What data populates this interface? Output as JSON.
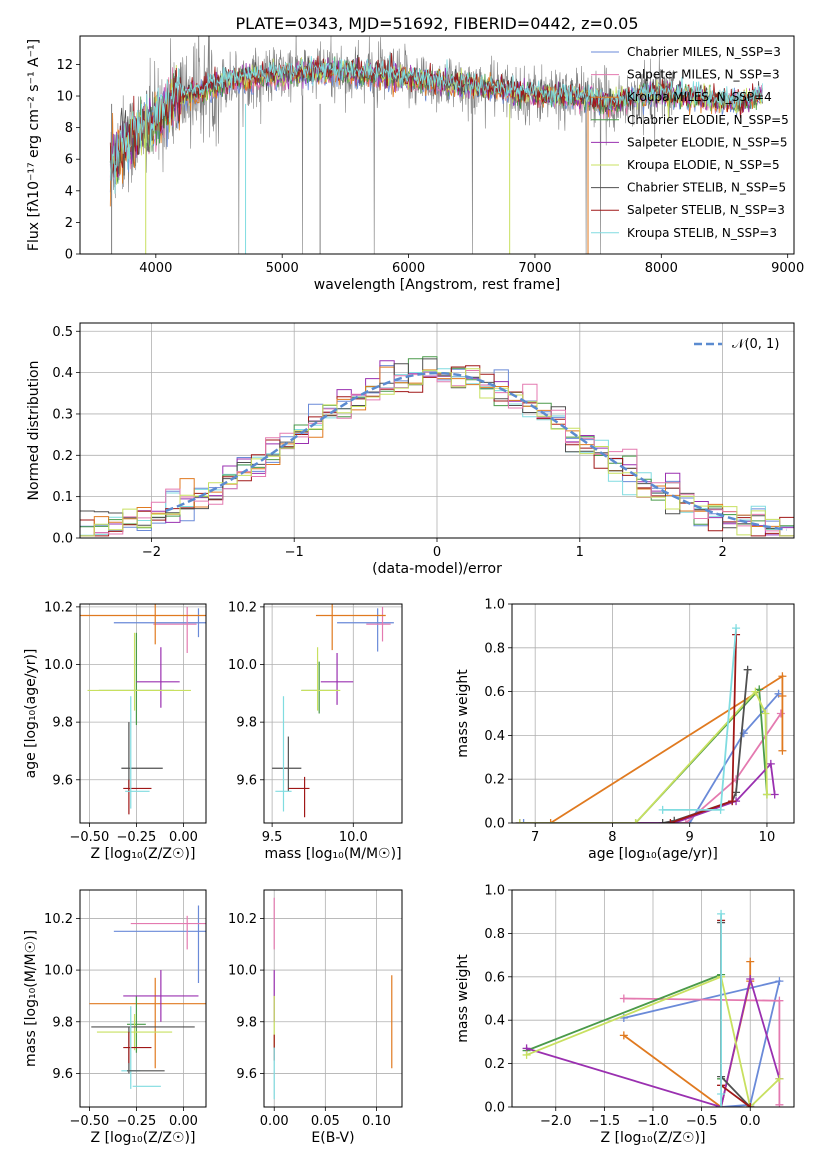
{
  "colors": {
    "chabrier_miles": "#6a8ad8",
    "salpeter_miles": "#e47ab0",
    "kroupa_miles": "#e07a20",
    "chabrier_elodie": "#4a9a4a",
    "salpeter_elodie": "#9a30b0",
    "kroupa_elodie": "#c8e060",
    "chabrier_stelib": "#505050",
    "salpeter_stelib": "#a01818",
    "kroupa_stelib": "#80dce0",
    "data_gray": "#7f7f7f",
    "gauss": "#5b8bd0"
  },
  "chart_data": [
    {
      "type": "line",
      "title": "PLATE=0343, MJD=51692, FIBERID=0442, z=0.05",
      "xlabel": "wavelength [Angstrom, rest frame]",
      "ylabel": "Flux [fλ10⁻¹⁷ erg cm⁻² s⁻¹ A⁻¹]",
      "xlim": [
        3400,
        9050
      ],
      "ylim": [
        0,
        13.8
      ],
      "xticks": [
        "4000",
        "5000",
        "6000",
        "7000",
        "8000",
        "9000"
      ],
      "yticks": [
        "0",
        "2",
        "4",
        "6",
        "8",
        "10",
        "12"
      ],
      "legend_position": "top-right",
      "legend": [
        "Chabrier MILES, N_SSP=3",
        "Salpeter MILES, N_SSP=3",
        "Kroupa MILES, N_SSP=4",
        "Chabrier ELODIE, N_SSP=5",
        "Salpeter ELODIE, N_SSP=5",
        "Kroupa ELODIE, N_SSP=5",
        "Chabrier STELIB, N_SSP=5",
        "Salpeter STELIB, N_SSP=3",
        "Kroupa STELIB, N_SSP=3"
      ],
      "continuum": {
        "x": [
          3650,
          3700,
          3800,
          3900,
          4000,
          4100,
          4200,
          4300,
          4400,
          4600,
          4800,
          5000,
          5200,
          5400,
          5600,
          5800,
          6000,
          6200,
          6400,
          6600,
          6800,
          7000,
          7200,
          7400,
          7600,
          7800,
          8000,
          8200,
          8400,
          8600,
          8800
        ],
        "y": [
          5.5,
          6.5,
          7.2,
          7.8,
          8.5,
          9.5,
          10.0,
          10.2,
          10.5,
          11.0,
          11.2,
          11.4,
          11.5,
          11.6,
          11.4,
          11.3,
          11.1,
          10.9,
          10.7,
          10.5,
          10.3,
          10.1,
          10.0,
          9.9,
          9.5,
          10.0,
          10.2,
          10.0,
          9.8,
          9.6,
          10.0
        ]
      },
      "data_range": [
        3640,
        8100
      ],
      "model_range": [
        3640,
        8800
      ],
      "dropouts": [
        3650,
        3920,
        4710,
        5300,
        6800,
        7420
      ]
    },
    {
      "type": "bar",
      "xlabel": "(data-model)/error",
      "ylabel": "Normed distribution",
      "xlim": [
        -2.5,
        2.5
      ],
      "ylim": [
        0,
        0.52
      ],
      "xticks": [
        "−2",
        "−1",
        "0",
        "1",
        "2"
      ],
      "yticks": [
        "0.0",
        "0.1",
        "0.2",
        "0.3",
        "0.4",
        "0.5"
      ],
      "grid": true,
      "legend_position": "top-right",
      "legend": [
        "𝒩(0, 1)"
      ],
      "bin_width": 0.1,
      "bin_range": [
        -2.5,
        2.5
      ],
      "note": "nine step histograms, one per model, approximately following the normal curve"
    },
    {
      "type": "scatter",
      "xlabel": "Z [log₁₀(Z/Z☉)]",
      "ylabel": "age  [log₁₀(age/yr)]",
      "xlim": [
        -0.55,
        0.12
      ],
      "ylim": [
        9.45,
        10.21
      ],
      "xticks": [
        "−0.50",
        "−0.25",
        "0.00"
      ],
      "yticks": [
        "9.6",
        "9.8",
        "10.0",
        "10.2"
      ],
      "grid": true,
      "points": [
        {
          "model": "chabrier_miles",
          "x": 0.08,
          "y": 10.145,
          "xerr": [
            0.45,
            0.05
          ],
          "yerr": [
            0.05,
            0.05
          ]
        },
        {
          "model": "salpeter_miles",
          "x": 0.02,
          "y": 10.14,
          "xerr": [
            0.18,
            0.05
          ],
          "yerr": [
            0.1,
            0.06
          ]
        },
        {
          "model": "kroupa_miles",
          "x": -0.15,
          "y": 10.17,
          "xerr": [
            0.4,
            0.3
          ],
          "yerr": [
            0.1,
            0.05
          ]
        },
        {
          "model": "chabrier_elodie",
          "x": -0.25,
          "y": 9.91,
          "xerr": [
            0.2,
            0.2
          ],
          "yerr": [
            0.12,
            0.2
          ]
        },
        {
          "model": "salpeter_elodie",
          "x": -0.12,
          "y": 9.94,
          "xerr": [
            0.13,
            0.1
          ],
          "yerr": [
            0.09,
            0.12
          ]
        },
        {
          "model": "kroupa_elodie",
          "x": -0.26,
          "y": 9.91,
          "xerr": [
            0.25,
            0.3
          ],
          "yerr": [
            0.07,
            0.2
          ]
        },
        {
          "model": "chabrier_stelib",
          "x": -0.29,
          "y": 9.64,
          "xerr": [
            0.04,
            0.18
          ],
          "yerr": [
            0.08,
            0.16
          ]
        },
        {
          "model": "salpeter_stelib",
          "x": -0.29,
          "y": 9.57,
          "xerr": [
            0.03,
            0.12
          ],
          "yerr": [
            0.09,
            0.03
          ]
        },
        {
          "model": "kroupa_stelib",
          "x": -0.28,
          "y": 9.56,
          "xerr": [
            0.03,
            0.1
          ],
          "yerr": [
            0.06,
            0.33
          ]
        }
      ]
    },
    {
      "type": "scatter",
      "xlabel": "mass [log₁₀(M/M☉)]",
      "ylabel": "",
      "xlim": [
        9.45,
        10.3
      ],
      "ylim": [
        9.45,
        10.21
      ],
      "xticks": [
        "9.5",
        "10.0"
      ],
      "yticks": [
        "9.6",
        "9.8",
        "10.0",
        "10.2"
      ],
      "grid": true,
      "points": [
        {
          "model": "chabrier_miles",
          "x": 10.15,
          "y": 10.145,
          "xerr": [
            0.25,
            0.1
          ],
          "yerr": [
            0.1,
            0.05
          ]
        },
        {
          "model": "salpeter_miles",
          "x": 10.18,
          "y": 10.14,
          "xerr": [
            0.1,
            0.05
          ],
          "yerr": [
            0.06,
            0.06
          ]
        },
        {
          "model": "kroupa_miles",
          "x": 9.87,
          "y": 10.17,
          "xerr": [
            0.1,
            0.33
          ],
          "yerr": [
            0.12,
            0.05
          ]
        },
        {
          "model": "chabrier_elodie",
          "x": 9.79,
          "y": 9.91,
          "xerr": [
            0.11,
            0.11
          ],
          "yerr": [
            0.08,
            0.1
          ]
        },
        {
          "model": "salpeter_elodie",
          "x": 9.9,
          "y": 9.94,
          "xerr": [
            0.1,
            0.1
          ],
          "yerr": [
            0.08,
            0.1
          ]
        },
        {
          "model": "kroupa_elodie",
          "x": 9.78,
          "y": 9.91,
          "xerr": [
            0.1,
            0.14
          ],
          "yerr": [
            0.07,
            0.15
          ]
        },
        {
          "model": "chabrier_stelib",
          "x": 9.6,
          "y": 9.64,
          "xerr": [
            0.1,
            0.08
          ],
          "yerr": [
            0.08,
            0.11
          ]
        },
        {
          "model": "salpeter_stelib",
          "x": 9.7,
          "y": 9.57,
          "xerr": [
            0.1,
            0.03
          ],
          "yerr": [
            0.1,
            0.04
          ]
        },
        {
          "model": "kroupa_stelib",
          "x": 9.57,
          "y": 9.56,
          "xerr": [
            0.05,
            0.05
          ],
          "yerr": [
            0.07,
            0.33
          ]
        }
      ]
    },
    {
      "type": "line",
      "xlabel": "age  [log₁₀(age/yr)]",
      "ylabel": "mass weight",
      "xlim": [
        6.7,
        10.35
      ],
      "ylim": [
        0,
        1
      ],
      "xticks": [
        "7",
        "8",
        "9",
        "10"
      ],
      "yticks": [
        "0.0",
        "0.2",
        "0.4",
        "0.6",
        "0.8",
        "1.0"
      ],
      "grid": true,
      "series": [
        {
          "model": "chabrier_miles",
          "x": [
            6.85,
            9.0,
            9.7,
            10.15
          ],
          "y": [
            0.0,
            0.0,
            0.41,
            0.59
          ]
        },
        {
          "model": "salpeter_miles",
          "x": [
            6.8,
            8.95,
            9.6,
            10.18
          ],
          "y": [
            0.0,
            0.0,
            0.2,
            0.5
          ]
        },
        {
          "model": "kroupa_miles",
          "x": [
            7.2,
            10.2,
            10.2,
            10.2
          ],
          "y": [
            0.0,
            0.67,
            0.58,
            0.33
          ]
        },
        {
          "model": "chabrier_elodie",
          "x": [
            6.8,
            8.3,
            9.9,
            10.0
          ],
          "y": [
            0.0,
            0.0,
            0.61,
            0.13
          ]
        },
        {
          "model": "salpeter_elodie",
          "x": [
            6.8,
            8.8,
            9.6,
            10.05,
            10.1
          ],
          "y": [
            0.0,
            0.0,
            0.1,
            0.27,
            0.13
          ]
        },
        {
          "model": "kroupa_elodie",
          "x": [
            6.8,
            8.3,
            9.85,
            9.98,
            10.0
          ],
          "y": [
            0.0,
            0.0,
            0.6,
            0.5,
            0.13
          ]
        },
        {
          "model": "chabrier_stelib",
          "x": [
            8.65,
            8.8,
            9.55,
            9.6,
            9.75
          ],
          "y": [
            0.0,
            0.01,
            0.1,
            0.14,
            0.7
          ]
        },
        {
          "model": "salpeter_stelib",
          "x": [
            8.75,
            9.55,
            9.6
          ],
          "y": [
            0.0,
            0.1,
            0.86
          ]
        },
        {
          "model": "kroupa_stelib",
          "x": [
            8.65,
            9.4,
            9.6
          ],
          "y": [
            0.06,
            0.06,
            0.89
          ]
        }
      ]
    },
    {
      "type": "scatter",
      "xlabel": "Z [log₁₀(Z/Z☉)]",
      "ylabel": "mass [log₁₀(M/M☉)]",
      "xlim": [
        -0.55,
        0.12
      ],
      "ylim": [
        9.47,
        10.31
      ],
      "xticks": [
        "−0.50",
        "−0.25",
        "0.00"
      ],
      "yticks": [
        "9.6",
        "9.8",
        "10.0",
        "10.2"
      ],
      "grid": true,
      "points": [
        {
          "model": "chabrier_miles",
          "x": 0.08,
          "y": 10.15,
          "xerr": [
            0.45,
            0.05
          ],
          "yerr": [
            0.2,
            0.1
          ]
        },
        {
          "model": "salpeter_miles",
          "x": 0.02,
          "y": 10.18,
          "xerr": [
            0.3,
            0.1
          ],
          "yerr": [
            0.1,
            0.03
          ]
        },
        {
          "model": "kroupa_miles",
          "x": -0.15,
          "y": 9.87,
          "xerr": [
            0.35,
            0.3
          ],
          "yerr": [
            0.25,
            0.1
          ]
        },
        {
          "model": "chabrier_elodie",
          "x": -0.25,
          "y": 9.79,
          "xerr": [
            0.05,
            0.05
          ],
          "yerr": [
            0.11,
            0.11
          ]
        },
        {
          "model": "salpeter_elodie",
          "x": -0.12,
          "y": 9.9,
          "xerr": [
            0.2,
            0.2
          ],
          "yerr": [
            0.1,
            0.1
          ]
        },
        {
          "model": "kroupa_elodie",
          "x": -0.26,
          "y": 9.76,
          "xerr": [
            0.2,
            0.2
          ],
          "yerr": [
            0.07,
            0.07
          ]
        },
        {
          "model": "chabrier_stelib",
          "x": -0.29,
          "y": 9.78,
          "xerr": [
            0.2,
            0.35
          ],
          "yerr": [
            0.18,
            0.0
          ]
        },
        {
          "model": "salpeter_stelib",
          "x": -0.29,
          "y": 9.7,
          "xerr": [
            0.03,
            0.12
          ],
          "yerr": [
            0.06,
            0.06
          ]
        },
        {
          "model": "kroupa_stelib",
          "x": -0.28,
          "y": 9.61,
          "xerr": [
            0.05,
            0.05
          ],
          "yerr": [
            0.07,
            0.25
          ]
        },
        {
          "model": "chabrier_stelib",
          "x": -0.25,
          "y": 9.61,
          "xerr": [
            0.05,
            0.15
          ],
          "yerr": [
            0.0,
            0.0
          ]
        },
        {
          "model": "kroupa_stelib",
          "x": -0.22,
          "y": 9.55,
          "xerr": [
            0.05,
            0.1
          ],
          "yerr": [
            0.0,
            0.0
          ]
        }
      ]
    },
    {
      "type": "scatter",
      "xlabel": "E(B-V)",
      "ylabel": "",
      "xlim": [
        -0.01,
        0.125
      ],
      "ylim": [
        9.47,
        10.31
      ],
      "xticks": [
        "0.00",
        "0.05",
        "0.10"
      ],
      "yticks": [
        "9.6",
        "9.8",
        "10.0",
        "10.2"
      ],
      "grid": true,
      "points": [
        {
          "model": "salpeter_miles",
          "x": 0.0,
          "y": 10.18,
          "xerr": [
            0,
            0
          ],
          "yerr": [
            0.1,
            0.1
          ]
        },
        {
          "model": "salpeter_elodie",
          "x": 0.0,
          "y": 9.9,
          "xerr": [
            0,
            0
          ],
          "yerr": [
            0.1,
            0.1
          ]
        },
        {
          "model": "kroupa_elodie",
          "x": 0.0,
          "y": 9.8,
          "xerr": [
            0,
            0
          ],
          "yerr": [
            0.1,
            0.1
          ]
        },
        {
          "model": "salpeter_stelib",
          "x": 0.0,
          "y": 9.7,
          "xerr": [
            0,
            0
          ],
          "yerr": [
            0.05,
            0.05
          ]
        },
        {
          "model": "kroupa_stelib",
          "x": 0.0,
          "y": 9.6,
          "xerr": [
            0,
            0
          ],
          "yerr": [
            0.1,
            0.1
          ]
        },
        {
          "model": "kroupa_miles",
          "x": 0.115,
          "y": 9.8,
          "xerr": [
            0,
            0
          ],
          "yerr": [
            0.18,
            0.18
          ]
        }
      ]
    },
    {
      "type": "line",
      "xlabel": "Z [log₁₀(Z/Z☉)]",
      "ylabel": "mass weight",
      "xlim": [
        -2.45,
        0.45
      ],
      "ylim": [
        0,
        1
      ],
      "xticks": [
        "−2.0",
        "−1.5",
        "−1.0",
        "−0.5",
        "0.0"
      ],
      "yticks": [
        "0.0",
        "0.2",
        "0.4",
        "0.6",
        "0.8",
        "1.0"
      ],
      "grid": true,
      "series": [
        {
          "model": "chabrier_miles",
          "x": [
            -1.3,
            0.3,
            0.0,
            -0.3
          ],
          "y": [
            0.41,
            0.58,
            0.01,
            0.0
          ]
        },
        {
          "model": "salpeter_miles",
          "x": [
            -1.3,
            0.3,
            0.3
          ],
          "y": [
            0.5,
            0.49,
            0.01
          ]
        },
        {
          "model": "kroupa_miles",
          "x": [
            -1.3,
            -0.3,
            0.0,
            0.0
          ],
          "y": [
            0.33,
            0.0,
            0.58,
            0.67
          ]
        },
        {
          "model": "chabrier_elodie",
          "x": [
            -2.3,
            -0.3,
            -0.3
          ],
          "y": [
            0.26,
            0.61,
            0.13
          ]
        },
        {
          "model": "salpeter_elodie",
          "x": [
            -2.3,
            -0.3,
            0.0,
            0.3
          ],
          "y": [
            0.27,
            0.0,
            0.59,
            0.13
          ]
        },
        {
          "model": "kroupa_elodie",
          "x": [
            -2.3,
            -0.3,
            0.0,
            0.3
          ],
          "y": [
            0.24,
            0.6,
            0.0,
            0.13
          ]
        },
        {
          "model": "chabrier_stelib",
          "x": [
            -0.3,
            -0.3,
            0.0
          ],
          "y": [
            0.85,
            0.14,
            0.0
          ]
        },
        {
          "model": "salpeter_stelib",
          "x": [
            -0.3,
            -0.3,
            0.0
          ],
          "y": [
            0.86,
            0.1,
            0.0
          ]
        },
        {
          "model": "kroupa_stelib",
          "x": [
            -0.3,
            -0.3,
            -0.3
          ],
          "y": [
            0.89,
            0.06,
            0.0
          ]
        }
      ]
    }
  ]
}
